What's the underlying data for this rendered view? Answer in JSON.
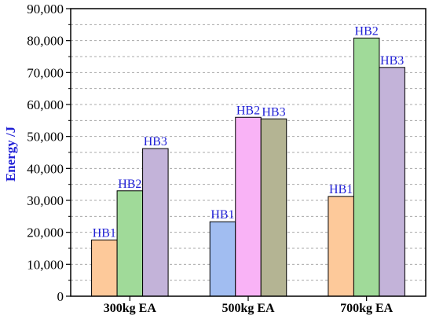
{
  "chart_data": {
    "type": "bar",
    "title": "",
    "xlabel": "",
    "ylabel": "Energy /J",
    "ylim": [
      0,
      90000
    ],
    "yticks": [
      "0",
      "10,000",
      "20,000",
      "30,000",
      "40,000",
      "50,000",
      "60,000",
      "70,000",
      "80,000",
      "90,000"
    ],
    "grid": true,
    "legend": "none",
    "groups": [
      {
        "category": "300kg EA",
        "bars": [
          {
            "label": "HB1",
            "value": 17600,
            "color": "#fdc99a"
          },
          {
            "label": "HB2",
            "value": 33000,
            "color": "#a0da99"
          },
          {
            "label": "HB3",
            "value": 46200,
            "color": "#c3b3d9"
          }
        ]
      },
      {
        "category": "500kg EA",
        "bars": [
          {
            "label": "HB1",
            "value": 23300,
            "color": "#a1bdf1"
          },
          {
            "label": "HB2",
            "value": 56000,
            "color": "#f9b3f6"
          },
          {
            "label": "HB3",
            "value": 55500,
            "color": "#b4b493"
          }
        ]
      },
      {
        "category": "700kg EA",
        "bars": [
          {
            "label": "HB1",
            "value": 31200,
            "color": "#fdc99a"
          },
          {
            "label": "HB2",
            "value": 80800,
            "color": "#a0da99"
          },
          {
            "label": "HB3",
            "value": 71600,
            "color": "#c3b3d9"
          }
        ]
      }
    ]
  }
}
